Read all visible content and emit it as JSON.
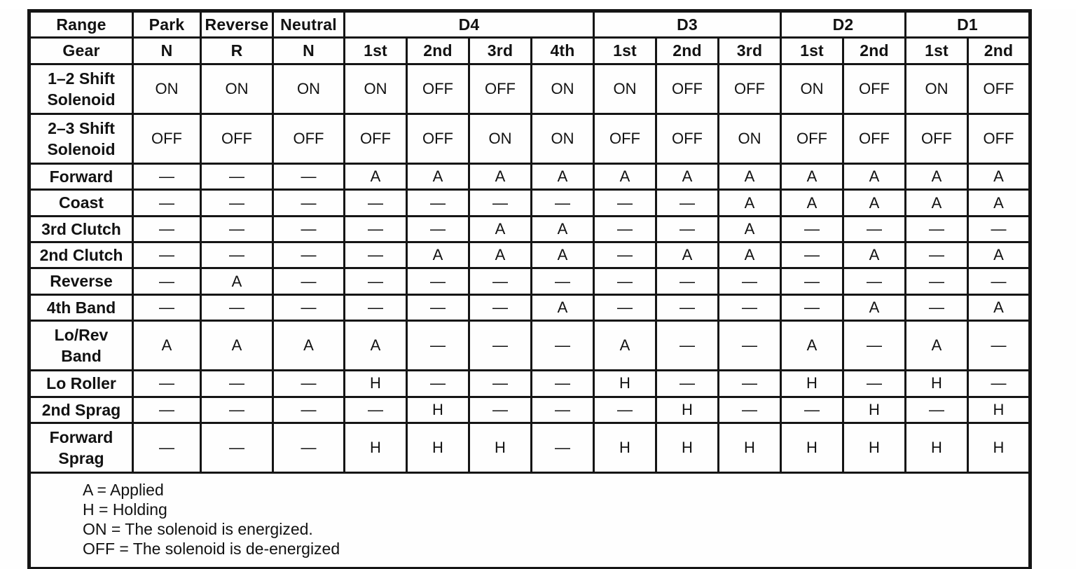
{
  "colors": {
    "ink": "#151515",
    "paper": "#fefefe"
  },
  "table": {
    "range_header_label": "Range",
    "gear_header_label": "Gear",
    "range_groups": [
      {
        "label": "Park",
        "span": 1
      },
      {
        "label": "Reverse",
        "span": 1
      },
      {
        "label": "Neutral",
        "span": 1
      },
      {
        "label": "D4",
        "span": 4
      },
      {
        "label": "D3",
        "span": 3
      },
      {
        "label": "D2",
        "span": 2
      },
      {
        "label": "D1",
        "span": 2
      }
    ],
    "gears": [
      "N",
      "R",
      "N",
      "1st",
      "2nd",
      "3rd",
      "4th",
      "1st",
      "2nd",
      "3rd",
      "1st",
      "2nd",
      "1st",
      "2nd"
    ],
    "rows": [
      {
        "label_lines": [
          "1–2 Shift",
          "Solenoid"
        ],
        "values": [
          "ON",
          "ON",
          "ON",
          "ON",
          "OFF",
          "OFF",
          "ON",
          "ON",
          "OFF",
          "OFF",
          "ON",
          "OFF",
          "ON",
          "OFF"
        ]
      },
      {
        "label_lines": [
          "2–3 Shift",
          "Solenoid"
        ],
        "values": [
          "OFF",
          "OFF",
          "OFF",
          "OFF",
          "OFF",
          "ON",
          "ON",
          "OFF",
          "OFF",
          "ON",
          "OFF",
          "OFF",
          "OFF",
          "OFF"
        ]
      },
      {
        "label_lines": [
          "Forward"
        ],
        "values": [
          "—",
          "—",
          "—",
          "A",
          "A",
          "A",
          "A",
          "A",
          "A",
          "A",
          "A",
          "A",
          "A",
          "A"
        ]
      },
      {
        "label_lines": [
          "Coast"
        ],
        "values": [
          "—",
          "—",
          "—",
          "—",
          "—",
          "—",
          "—",
          "—",
          "—",
          "A",
          "A",
          "A",
          "A",
          "A"
        ]
      },
      {
        "label_lines": [
          "3rd Clutch"
        ],
        "values": [
          "—",
          "—",
          "—",
          "—",
          "—",
          "A",
          "A",
          "—",
          "—",
          "A",
          "—",
          "—",
          "—",
          "—"
        ]
      },
      {
        "label_lines": [
          "2nd Clutch"
        ],
        "values": [
          "—",
          "—",
          "—",
          "—",
          "A",
          "A",
          "A",
          "—",
          "A",
          "A",
          "—",
          "A",
          "—",
          "A"
        ]
      },
      {
        "label_lines": [
          "Reverse"
        ],
        "values": [
          "—",
          "A",
          "—",
          "—",
          "—",
          "—",
          "—",
          "—",
          "—",
          "—",
          "—",
          "—",
          "—",
          "—"
        ]
      },
      {
        "label_lines": [
          "4th  Band"
        ],
        "values": [
          "—",
          "—",
          "—",
          "—",
          "—",
          "—",
          "A",
          "—",
          "—",
          "—",
          "—",
          "A",
          "—",
          "A"
        ]
      },
      {
        "label_lines": [
          "Lo/Rev",
          "Band"
        ],
        "values": [
          "A",
          "A",
          "A",
          "A",
          "—",
          "—",
          "—",
          "A",
          "—",
          "—",
          "A",
          "—",
          "A",
          "—"
        ]
      },
      {
        "label_lines": [
          "Lo Roller"
        ],
        "values": [
          "—",
          "—",
          "—",
          "H",
          "—",
          "—",
          "—",
          "H",
          "—",
          "—",
          "H",
          "—",
          "H",
          "—"
        ]
      },
      {
        "label_lines": [
          "2nd  Sprag"
        ],
        "values": [
          "—",
          "—",
          "—",
          "—",
          "H",
          "—",
          "—",
          "—",
          "H",
          "—",
          "—",
          "H",
          "—",
          "H"
        ]
      },
      {
        "label_lines": [
          "Forward",
          "Sprag"
        ],
        "values": [
          "—",
          "—",
          "—",
          "H",
          "H",
          "H",
          "—",
          "H",
          "H",
          "H",
          "H",
          "H",
          "H",
          "H"
        ]
      }
    ],
    "legend": [
      "A = Applied",
      "H = Holding",
      "ON = The solenoid is energized.",
      "OFF = The solenoid is de-energized"
    ]
  }
}
